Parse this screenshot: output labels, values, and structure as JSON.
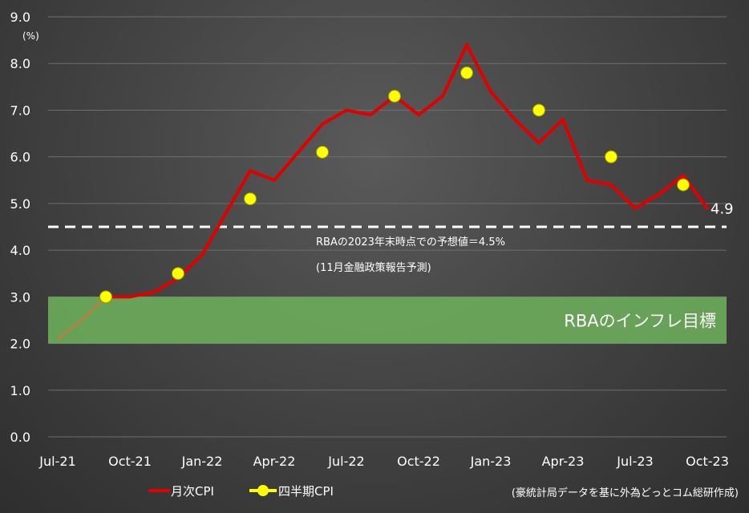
{
  "chart_data": {
    "type": "line",
    "y_unit": "(%)",
    "ylim": [
      0,
      9
    ],
    "y_ticks": [
      "0.0",
      "1.0",
      "2.0",
      "3.0",
      "4.0",
      "5.0",
      "6.0",
      "7.0",
      "8.0",
      "9.0"
    ],
    "x_tick_labels": [
      "Jul-21",
      "Oct-21",
      "Jan-22",
      "Apr-22",
      "Jul-22",
      "Oct-22",
      "Jan-23",
      "Apr-23",
      "Jul-23",
      "Oct-23"
    ],
    "grid": true,
    "legend_position": "bottom-left",
    "series": [
      {
        "name": "月次CPI",
        "style": "line",
        "color": "#e00000",
        "x": [
          "Jul-21",
          "Aug-21",
          "Sep-21",
          "Oct-21",
          "Nov-21",
          "Dec-21",
          "Jan-22",
          "Feb-22",
          "Mar-22",
          "Apr-22",
          "May-22",
          "Jun-22",
          "Jul-22",
          "Aug-22",
          "Sep-22",
          "Oct-22",
          "Nov-22",
          "Dec-22",
          "Jan-23",
          "Feb-23",
          "Mar-23",
          "Apr-23",
          "May-23",
          "Jun-23",
          "Jul-23",
          "Aug-23",
          "Sep-23",
          "Oct-23"
        ],
        "values": [
          2.1,
          2.5,
          3.0,
          3.0,
          3.1,
          3.4,
          3.9,
          4.8,
          5.7,
          5.5,
          6.1,
          6.7,
          7.0,
          6.9,
          7.3,
          6.9,
          7.3,
          8.4,
          7.4,
          6.8,
          6.3,
          6.8,
          5.5,
          5.4,
          4.9,
          5.2,
          5.6,
          4.9
        ],
        "early_segment_color": "#c87a3a"
      },
      {
        "name": "四半期CPI",
        "style": "markers",
        "color": "#ffff00",
        "x": [
          "Sep-21",
          "Dec-21",
          "Mar-22",
          "Jun-22",
          "Sep-22",
          "Dec-22",
          "Mar-23",
          "Jun-23",
          "Sep-23"
        ],
        "values": [
          3.0,
          3.5,
          5.1,
          6.1,
          7.3,
          7.8,
          7.0,
          6.0,
          5.4
        ]
      }
    ],
    "last_value_label": "4.9",
    "forecast_line": {
      "value": 4.5,
      "label_1": "RBAの2023年末時点での予想値＝4.5%",
      "label_2": "(11月金融政策報告予測)"
    },
    "target_band": {
      "range": [
        2.0,
        3.0
      ],
      "label": "RBAのインフレ目標",
      "color": "#6aaa5a"
    },
    "source": "(豪統計局データを基に外為どっとコム総研作成)"
  }
}
